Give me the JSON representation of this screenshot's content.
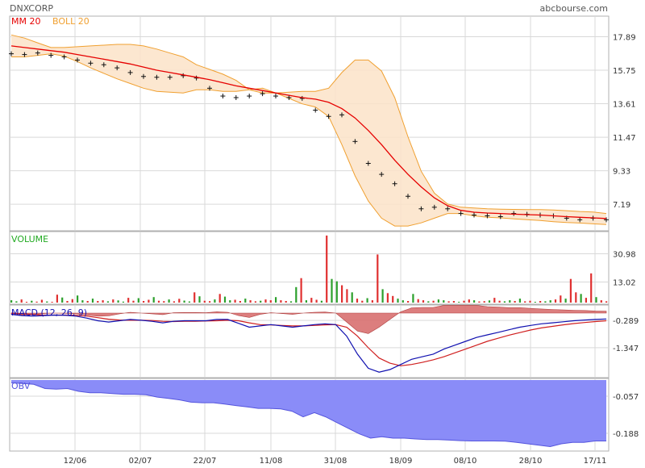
{
  "header": {
    "ticker": "DNXCORP",
    "source": "abcbourse.com",
    "ma_label": "MM 20",
    "boll_label": "BOLL 20"
  },
  "colors": {
    "ma": "#e60000",
    "boll_line": "#f0a030",
    "boll_fill": "#fbe3c8",
    "volume_label": "#22aa22",
    "vol_up": "#2ca02c",
    "vol_down": "#e03030",
    "macd_line": "#1010b0",
    "signal_line": "#d02020",
    "histogram": "#d87070",
    "obv_fill": "#8a8cf8",
    "obv_line": "#5555dd",
    "grid": "#d9d9d9",
    "panel_border": "#b0b0b0"
  },
  "chart_data": [
    {
      "type": "line",
      "panel": "price",
      "title": "DNXCORP",
      "x_tick_labels": [
        "12/06",
        "02/07",
        "22/07",
        "11/08",
        "31/08",
        "18/09",
        "08/10",
        "28/10",
        "17/11"
      ],
      "y_ticks": [
        17.89,
        15.75,
        13.61,
        11.47,
        9.33,
        7.19
      ],
      "grid": true,
      "series": [
        {
          "name": "MM 20",
          "values": [
            17.3,
            17.2,
            17.1,
            17.0,
            16.9,
            16.75,
            16.6,
            16.45,
            16.3,
            16.15,
            15.95,
            15.75,
            15.6,
            15.45,
            15.3,
            15.15,
            14.95,
            14.75,
            14.6,
            14.45,
            14.3,
            14.15,
            14.0,
            13.9,
            13.7,
            13.3,
            12.7,
            11.9,
            11.0,
            10.0,
            9.1,
            8.3,
            7.6,
            7.1,
            6.8,
            6.68,
            6.63,
            6.6,
            6.56,
            6.53,
            6.5,
            6.45,
            6.4,
            6.36,
            6.32,
            6.28
          ]
        },
        {
          "name": "BOLL 20 upper",
          "values": [
            18.0,
            17.8,
            17.5,
            17.2,
            17.2,
            17.25,
            17.3,
            17.35,
            17.4,
            17.4,
            17.3,
            17.1,
            16.85,
            16.6,
            16.1,
            15.8,
            15.5,
            15.1,
            14.5,
            14.3,
            14.3,
            14.35,
            14.4,
            14.4,
            14.6,
            15.6,
            16.4,
            16.4,
            15.7,
            14.0,
            11.5,
            9.3,
            7.9,
            7.2,
            7.0,
            6.95,
            6.9,
            6.88,
            6.86,
            6.85,
            6.85,
            6.82,
            6.78,
            6.73,
            6.7,
            6.6
          ]
        },
        {
          "name": "BOLL 20 lower",
          "values": [
            16.6,
            16.6,
            16.7,
            16.8,
            16.65,
            16.3,
            15.9,
            15.55,
            15.2,
            14.9,
            14.6,
            14.4,
            14.35,
            14.3,
            14.5,
            14.5,
            14.4,
            14.4,
            14.5,
            14.6,
            14.3,
            13.95,
            13.6,
            13.4,
            12.8,
            11.0,
            9.0,
            7.4,
            6.3,
            5.8,
            5.8,
            6.0,
            6.3,
            6.6,
            6.6,
            6.45,
            6.36,
            6.32,
            6.26,
            6.21,
            6.15,
            6.08,
            6.02,
            5.99,
            5.94,
            5.9
          ]
        },
        {
          "name": "Close",
          "values": [
            16.8,
            16.75,
            16.85,
            16.7,
            16.6,
            16.4,
            16.2,
            16.1,
            15.9,
            15.6,
            15.35,
            15.3,
            15.3,
            15.4,
            15.25,
            14.6,
            14.1,
            14.0,
            14.1,
            14.25,
            14.1,
            14.0,
            13.95,
            13.2,
            12.8,
            12.9,
            11.2,
            9.8,
            9.1,
            8.5,
            7.7,
            6.9,
            7.0,
            6.9,
            6.6,
            6.5,
            6.45,
            6.4,
            6.6,
            6.55,
            6.5,
            6.45,
            6.3,
            6.2,
            6.3,
            6.2
          ]
        }
      ],
      "ylim": [
        5.6,
        19.1
      ]
    },
    {
      "type": "bar",
      "panel": "volume",
      "title": "VOLUME",
      "y_ticks": [
        30.98,
        13.02
      ],
      "grid": true,
      "series": [
        {
          "name": "VOLUME",
          "values": [
            1.5,
            0.8,
            2.0,
            0.5,
            1.2,
            0.6,
            1.8,
            0.7,
            0.5,
            5.0,
            3.2,
            1.0,
            2.2,
            4.5,
            1.5,
            1.0,
            2.5,
            1.0,
            1.5,
            0.8,
            2.0,
            1.4,
            0.6,
            3.0,
            1.2,
            2.8,
            1.0,
            1.8,
            3.5,
            1.2,
            0.9,
            2.0,
            0.8,
            2.4,
            1.3,
            0.7,
            6.5,
            4.0,
            1.2,
            0.9,
            2.0,
            5.5,
            3.8,
            1.5,
            1.8,
            1.0,
            2.5,
            1.5,
            0.8,
            1.2,
            2.0,
            1.5,
            3.5,
            1.5,
            1.0,
            0.8,
            9.8,
            15.5,
            1.5,
            3.0,
            1.8,
            1.2,
            42.5,
            15.0,
            13.5,
            11.0,
            8.5,
            6.5,
            2.5,
            1.2,
            2.8,
            1.5,
            30.5,
            8.5,
            6.0,
            4.2,
            2.5,
            1.5,
            1.0,
            5.5,
            2.2,
            1.5,
            0.8,
            1.2,
            2.0,
            1.5,
            0.8,
            1.0,
            0.5,
            1.2,
            2.0,
            1.5,
            0.7,
            0.9,
            1.4,
            3.0,
            1.2,
            0.8,
            1.5,
            1.0,
            2.5,
            0.8,
            1.2,
            0.5,
            1.0,
            0.8,
            1.5,
            2.0,
            4.5,
            2.5,
            15.0,
            6.5,
            5.5,
            3.0,
            18.5,
            3.5,
            1.5,
            0.8
          ]
        }
      ],
      "ylim": [
        0,
        44.0
      ]
    },
    {
      "type": "line",
      "panel": "macd",
      "title": "MACD (12, 26, 9)",
      "y_ticks": [
        -0.289,
        -1.347
      ],
      "grid": true,
      "series": [
        {
          "name": "MACD",
          "values": [
            -0.05,
            -0.1,
            -0.12,
            -0.1,
            -0.08,
            -0.09,
            -0.12,
            -0.2,
            -0.3,
            -0.35,
            -0.3,
            -0.25,
            -0.28,
            -0.32,
            -0.38,
            -0.32,
            -0.3,
            -0.3,
            -0.3,
            -0.25,
            -0.25,
            -0.4,
            -0.55,
            -0.5,
            -0.45,
            -0.5,
            -0.55,
            -0.5,
            -0.45,
            -0.42,
            -0.45,
            -0.9,
            -1.6,
            -2.15,
            -2.3,
            -2.2,
            -2.0,
            -1.8,
            -1.7,
            -1.6,
            -1.4,
            -1.25,
            -1.1,
            -0.95,
            -0.85,
            -0.75,
            -0.65,
            -0.55,
            -0.48,
            -0.42,
            -0.38,
            -0.34,
            -0.3,
            -0.27,
            -0.25,
            -0.23
          ]
        },
        {
          "name": "Signal",
          "values": [
            0.0,
            -0.03,
            -0.06,
            -0.08,
            -0.08,
            -0.08,
            -0.09,
            -0.12,
            -0.18,
            -0.24,
            -0.27,
            -0.28,
            -0.28,
            -0.29,
            -0.32,
            -0.33,
            -0.32,
            -0.32,
            -0.31,
            -0.3,
            -0.28,
            -0.3,
            -0.38,
            -0.45,
            -0.46,
            -0.48,
            -0.5,
            -0.5,
            -0.48,
            -0.46,
            -0.45,
            -0.55,
            -0.9,
            -1.35,
            -1.75,
            -1.95,
            -2.05,
            -2.0,
            -1.92,
            -1.82,
            -1.7,
            -1.55,
            -1.4,
            -1.25,
            -1.1,
            -0.98,
            -0.86,
            -0.76,
            -0.66,
            -0.58,
            -0.52,
            -0.46,
            -0.41,
            -0.37,
            -0.33,
            -0.3
          ]
        },
        {
          "name": "Histogram",
          "values": [
            -0.05,
            -0.07,
            -0.06,
            -0.02,
            0.0,
            -0.01,
            -0.03,
            -0.08,
            -0.12,
            -0.11,
            -0.03,
            0.03,
            0.0,
            -0.03,
            -0.06,
            0.01,
            0.02,
            0.02,
            0.01,
            0.05,
            0.03,
            -0.1,
            -0.17,
            -0.05,
            0.01,
            -0.02,
            -0.05,
            0.0,
            0.03,
            0.04,
            0.0,
            -0.35,
            -0.7,
            -0.8,
            -0.55,
            -0.25,
            0.05,
            0.2,
            0.22,
            0.22,
            0.3,
            0.3,
            0.3,
            0.3,
            0.25,
            0.23,
            0.21,
            0.21,
            0.18,
            0.16,
            0.14,
            0.12,
            0.11,
            0.1,
            0.08,
            0.07
          ]
        }
      ],
      "ylim": [
        -2.45,
        0.25
      ]
    },
    {
      "type": "area",
      "panel": "obv",
      "title": "OBV",
      "y_ticks": [
        -0.057,
        -0.188
      ],
      "grid": true,
      "series": [
        {
          "name": "OBV",
          "values": [
            -0.01,
            -0.012,
            -0.015,
            -0.03,
            -0.032,
            -0.03,
            -0.04,
            -0.045,
            -0.045,
            -0.048,
            -0.05,
            -0.05,
            -0.052,
            -0.06,
            -0.065,
            -0.07,
            -0.078,
            -0.08,
            -0.08,
            -0.085,
            -0.09,
            -0.095,
            -0.1,
            -0.1,
            -0.102,
            -0.11,
            -0.13,
            -0.115,
            -0.13,
            -0.15,
            -0.17,
            -0.19,
            -0.205,
            -0.2,
            -0.205,
            -0.205,
            -0.208,
            -0.21,
            -0.21,
            -0.212,
            -0.214,
            -0.215,
            -0.215,
            -0.215,
            -0.216,
            -0.22,
            -0.225,
            -0.23,
            -0.235,
            -0.225,
            -0.22,
            -0.22,
            -0.215,
            -0.215
          ]
        }
      ],
      "ylim": [
        -0.245,
        0.0
      ]
    }
  ],
  "panels": {
    "volume_label": "VOLUME",
    "macd_label": "MACD (12, 26, 9)",
    "obv_label": "OBV"
  }
}
